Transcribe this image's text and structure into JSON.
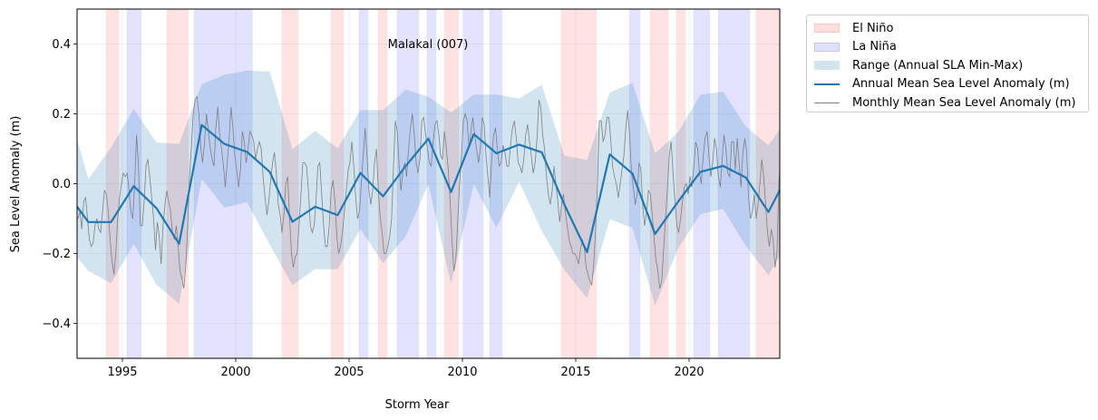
{
  "chart_data": {
    "type": "line",
    "title": "Malakal (007)",
    "xlabel": "Storm Year",
    "ylabel": "Sea Level Anomaly (m)",
    "xlim": [
      1993,
      2024
    ],
    "ylim": [
      -0.5,
      0.5
    ],
    "grid": true,
    "legend_position": "outside-top-right",
    "xticks": [
      1995,
      2000,
      2005,
      2010,
      2015,
      2020
    ],
    "yticks": [
      -0.4,
      -0.2,
      0.0,
      0.2,
      0.4
    ],
    "xtick_labels": [
      "1995",
      "2000",
      "2005",
      "2010",
      "2015",
      "2020"
    ],
    "ytick_labels": [
      "−0.4",
      "−0.2",
      "0.0",
      "0.2",
      "0.4"
    ],
    "legend": [
      {
        "label": "El Niño",
        "kind": "patch",
        "color": "#ffcccc"
      },
      {
        "label": "La Niña",
        "kind": "patch",
        "color": "#ccccff"
      },
      {
        "label": "Range (Annual SLA Min-Max)",
        "kind": "patch",
        "color": "#a6c8e0"
      },
      {
        "label": "Annual Mean Sea Level Anomaly (m)",
        "kind": "line",
        "color": "#1f77b4"
      },
      {
        "label": "Monthly Mean Sea Level Anomaly (m)",
        "kind": "thinline",
        "color": "#808080"
      }
    ],
    "colors": {
      "el_nino": "#ff9999",
      "la_nina": "#9999ff",
      "range": "#a6c8e0",
      "annual": "#1f77b4",
      "monthly": "#808080"
    },
    "el_nino_periods": [
      [
        1994.28,
        1994.83
      ],
      [
        1996.96,
        1997.9
      ],
      [
        2002.04,
        2002.75
      ],
      [
        2004.21,
        2004.75
      ],
      [
        2006.28,
        2006.67
      ],
      [
        2009.21,
        2009.83
      ],
      [
        2014.36,
        2015.91
      ],
      [
        2018.28,
        2019.07
      ],
      [
        2019.44,
        2019.83
      ],
      [
        2022.96,
        2024.1
      ]
    ],
    "la_nina_periods": [
      [
        1995.2,
        1995.83
      ],
      [
        1998.16,
        2000.73
      ],
      [
        2005.44,
        2005.83
      ],
      [
        2007.12,
        2008.07
      ],
      [
        2008.44,
        2008.83
      ],
      [
        2010.05,
        2010.91
      ],
      [
        2011.2,
        2011.75
      ],
      [
        2017.37,
        2017.83
      ],
      [
        2020.21,
        2020.91
      ],
      [
        2021.28,
        2022.67
      ]
    ],
    "annual": {
      "x": [
        1992.5,
        1993.5,
        1994.5,
        1995.5,
        1996.5,
        1997.5,
        1998.5,
        1999.5,
        2000.5,
        2001.5,
        2002.5,
        2003.5,
        2004.5,
        2005.5,
        2006.5,
        2007.5,
        2008.5,
        2009.5,
        2010.5,
        2011.5,
        2012.5,
        2013.5,
        2014.5,
        2015.5,
        2016.5,
        2017.5,
        2018.5,
        2019.5,
        2020.5,
        2021.5,
        2022.5,
        2023.5,
        2024.5
      ],
      "mean": [
        -0.022,
        -0.11,
        -0.11,
        -0.007,
        -0.07,
        -0.172,
        0.168,
        0.114,
        0.091,
        0.034,
        -0.109,
        -0.066,
        -0.09,
        0.031,
        -0.036,
        0.051,
        0.129,
        -0.024,
        0.142,
        0.087,
        0.112,
        0.09,
        -0.06,
        -0.196,
        0.084,
        0.029,
        -0.144,
        -0.053,
        0.034,
        0.051,
        0.018,
        -0.081,
        0.043
      ],
      "max": [
        0.24,
        0.013,
        0.104,
        0.214,
        0.118,
        0.114,
        0.285,
        0.312,
        0.324,
        0.321,
        0.099,
        0.151,
        0.101,
        0.211,
        0.211,
        0.269,
        0.249,
        0.204,
        0.255,
        0.255,
        0.244,
        0.283,
        0.08,
        0.068,
        0.261,
        0.289,
        0.087,
        0.146,
        0.255,
        0.263,
        0.164,
        0.11,
        0.2
      ],
      "min": [
        -0.17,
        -0.25,
        -0.285,
        -0.172,
        -0.289,
        -0.344,
        0.014,
        -0.068,
        -0.053,
        -0.174,
        -0.291,
        -0.245,
        -0.245,
        -0.129,
        -0.228,
        -0.15,
        -0.001,
        -0.287,
        -0.001,
        -0.126,
        0.006,
        -0.135,
        -0.247,
        -0.328,
        -0.102,
        -0.126,
        -0.349,
        -0.187,
        -0.087,
        -0.072,
        -0.178,
        -0.262,
        -0.15
      ]
    },
    "monthly": {
      "start_year": 1993,
      "values": [
        -0.1,
        -0.08,
        -0.13,
        -0.05,
        -0.04,
        -0.1,
        -0.16,
        -0.18,
        -0.17,
        -0.12,
        -0.1,
        -0.13,
        -0.14,
        -0.08,
        -0.02,
        -0.03,
        -0.08,
        -0.16,
        -0.22,
        -0.26,
        -0.2,
        -0.1,
        -0.04,
        0.0,
        0.03,
        0.02,
        0.03,
        -0.02,
        -0.08,
        -0.1,
        0.0,
        0.14,
        0.05,
        -0.12,
        -0.12,
        -0.05,
        0.05,
        0.07,
        0.02,
        -0.04,
        -0.1,
        -0.19,
        -0.11,
        -0.15,
        -0.23,
        -0.12,
        -0.06,
        -0.02,
        -0.05,
        -0.08,
        -0.14,
        -0.16,
        -0.12,
        -0.18,
        -0.25,
        -0.27,
        -0.3,
        -0.24,
        -0.13,
        0.02,
        0.1,
        0.2,
        0.24,
        0.25,
        0.2,
        0.1,
        0.06,
        0.12,
        0.2,
        0.15,
        0.1,
        0.07,
        0.05,
        0.16,
        0.22,
        0.14,
        0.1,
        0.05,
        -0.01,
        0.06,
        0.13,
        0.22,
        0.16,
        0.08,
        0.04,
        -0.01,
        0.04,
        0.15,
        0.12,
        0.06,
        0.1,
        0.15,
        0.14,
        0.12,
        0.07,
        0.1,
        0.12,
        0.1,
        0.02,
        -0.04,
        -0.09,
        -0.05,
        0.01,
        0.06,
        0.09,
        0.03,
        -0.06,
        -0.09,
        -0.14,
        -0.09,
        0.0,
        0.02,
        -0.1,
        -0.2,
        -0.24,
        -0.21,
        -0.2,
        -0.12,
        -0.03,
        0.06,
        0.06,
        0.05,
        -0.02,
        -0.12,
        -0.14,
        -0.12,
        -0.05,
        0.05,
        0.06,
        -0.03,
        -0.12,
        -0.18,
        -0.18,
        -0.12,
        -0.02,
        0.01,
        -0.05,
        -0.15,
        -0.2,
        -0.18,
        -0.14,
        -0.08,
        -0.02,
        0.04,
        0.06,
        0.12,
        0.05,
        -0.04,
        -0.1,
        -0.08,
        0.0,
        0.08,
        0.16,
        0.08,
        -0.02,
        -0.06,
        -0.02,
        0.06,
        0.1,
        -0.02,
        -0.1,
        -0.14,
        -0.2,
        -0.2,
        -0.18,
        -0.15,
        -0.1,
        0.05,
        0.18,
        0.15,
        0.05,
        -0.02,
        0.04,
        0.06,
        0.02,
        0.1,
        0.16,
        0.2,
        0.14,
        0.06,
        0.03,
        0.07,
        0.18,
        0.19,
        0.14,
        0.1,
        0.06,
        0.05,
        0.12,
        0.17,
        0.18,
        0.14,
        0.08,
        0.07,
        0.15,
        0.1,
        0.04,
        -0.05,
        -0.16,
        -0.25,
        -0.22,
        -0.11,
        0.0,
        0.08,
        0.18,
        0.2,
        0.18,
        0.1,
        0.15,
        0.19,
        0.14,
        0.1,
        0.06,
        0.1,
        0.19,
        0.17,
        0.08,
        0.02,
        -0.04,
        0.07,
        0.14,
        0.16,
        0.1,
        0.05,
        0.06,
        0.11,
        0.09,
        0.05,
        0.05,
        0.11,
        0.16,
        0.18,
        0.13,
        0.06,
        0.05,
        0.03,
        0.07,
        0.14,
        0.17,
        0.12,
        0.08,
        0.03,
        0.06,
        0.13,
        0.24,
        0.22,
        0.14,
        0.1,
        0.02,
        -0.03,
        -0.06,
        -0.02,
        0.05,
        0.0,
        -0.05,
        -0.11,
        -0.06,
        -0.03,
        -0.08,
        -0.12,
        -0.16,
        -0.18,
        -0.2,
        -0.2,
        -0.21,
        -0.23,
        -0.19,
        -0.16,
        -0.18,
        -0.24,
        -0.26,
        -0.28,
        -0.29,
        -0.23,
        -0.13,
        0.0,
        0.18,
        0.18,
        0.12,
        0.14,
        0.19,
        0.19,
        0.13,
        0.05,
        0.02,
        0.0,
        -0.04,
        0.0,
        0.04,
        0.08,
        0.16,
        0.21,
        0.14,
        0.03,
        -0.01,
        -0.06,
        -0.03,
        0.06,
        0.04,
        -0.07,
        -0.12,
        -0.08,
        -0.02,
        -0.03,
        -0.09,
        -0.16,
        -0.22,
        -0.25,
        -0.3,
        -0.28,
        -0.19,
        -0.1,
        -0.02,
        0.08,
        0.12,
        0.03,
        -0.05,
        -0.12,
        -0.14,
        -0.1,
        -0.05,
        -0.01,
        0.0,
        -0.03,
        0.02,
        -0.01,
        0.05,
        0.12,
        0.1,
        0.03,
        0.0,
        0.08,
        0.13,
        0.15,
        0.08,
        0.02,
        0.06,
        0.13,
        0.1,
        0.02,
        -0.01,
        0.07,
        0.14,
        0.1,
        0.03,
        0.02,
        0.12,
        0.12,
        0.04,
        0.13,
        0.06,
        -0.01,
        0.09,
        0.13,
        0.09,
        -0.04,
        -0.1,
        -0.08,
        -0.03,
        -0.1,
        -0.06,
        0.0,
        0.07,
        0.02,
        -0.06,
        -0.14,
        -0.18,
        -0.13,
        -0.16,
        -0.24,
        -0.2,
        0.0,
        0.08
      ]
    }
  }
}
